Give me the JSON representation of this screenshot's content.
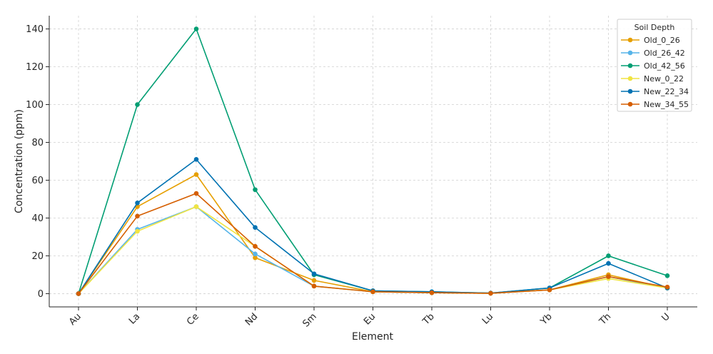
{
  "chart_data": {
    "type": "line",
    "title": "",
    "xlabel": "Element",
    "ylabel": "Concentration (ppm)",
    "categories": [
      "Au",
      "La",
      "Ce",
      "Nd",
      "Sm",
      "Eu",
      "Tb",
      "Lu",
      "Yb",
      "Th",
      "U"
    ],
    "ylim": [
      -7,
      147
    ],
    "yticks": [
      0,
      20,
      40,
      60,
      80,
      100,
      120,
      140
    ],
    "grid": true,
    "legend_title": "Soil Depth",
    "legend_position": "top-right",
    "series": [
      {
        "name": "Old_0_26",
        "color": "#E69F00",
        "values": [
          0,
          46,
          63,
          19,
          7,
          1,
          0.5,
          0.2,
          2,
          10,
          3
        ]
      },
      {
        "name": "Old_26_42",
        "color": "#56B4E9",
        "values": [
          0,
          34,
          46,
          21,
          4,
          1,
          0.5,
          0.2,
          2,
          9,
          3
        ]
      },
      {
        "name": "Old_42_56",
        "color": "#009E73",
        "values": [
          0,
          100,
          140,
          55,
          10,
          1.5,
          1,
          0.3,
          3,
          20,
          9.5
        ]
      },
      {
        "name": "New_0_22",
        "color": "#F0E442",
        "values": [
          0,
          33,
          46,
          25,
          4,
          1,
          0.5,
          0.2,
          2,
          8,
          3
        ]
      },
      {
        "name": "New_22_34",
        "color": "#0072B2",
        "values": [
          0,
          48,
          71,
          35,
          10.5,
          1.5,
          1,
          0.3,
          3,
          16,
          3
        ]
      },
      {
        "name": "New_34_55",
        "color": "#D55E00",
        "values": [
          0,
          41,
          53,
          25,
          4,
          1,
          0.5,
          0.2,
          2,
          9,
          3.5
        ]
      }
    ]
  }
}
